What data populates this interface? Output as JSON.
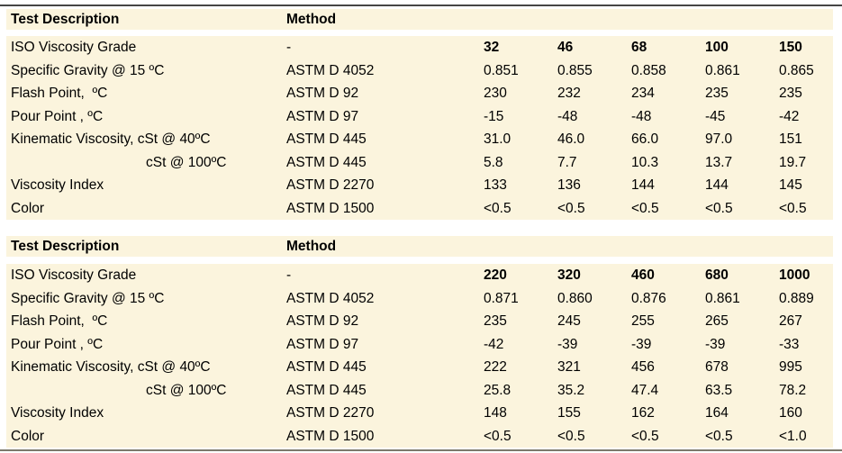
{
  "page": {
    "background_color": "#ffffff",
    "band_color": "#fbf4dd",
    "text_color": "#000000",
    "top_rule_color": "#454545",
    "bottom_rule_color": "#7d796c"
  },
  "tables": [
    {
      "headers": {
        "test_description": "Test Description",
        "method": "Method"
      },
      "rows": [
        {
          "label": "ISO Viscosity Grade",
          "method": "-",
          "values": [
            "32",
            "46",
            "68",
            "100",
            "150"
          ],
          "bold_values": true,
          "indent": false
        },
        {
          "label": "Specific Gravity @ 15 ºC",
          "method": "ASTM D 4052",
          "values": [
            "0.851",
            "0.855",
            "0.858",
            "0.861",
            "0.865"
          ],
          "bold_values": false,
          "indent": false
        },
        {
          "label": "Flash Point,  ºC",
          "method": "ASTM D 92",
          "values": [
            "230",
            "232",
            "234",
            "235",
            "235"
          ],
          "bold_values": false,
          "indent": false
        },
        {
          "label": "Pour Point , ºC",
          "method": "ASTM D 97",
          "values": [
            "-15",
            "-48",
            "-48",
            "-45",
            "-42"
          ],
          "bold_values": false,
          "indent": false
        },
        {
          "label": "Kinematic Viscosity, cSt @ 40ºC",
          "method": "ASTM D 445",
          "values": [
            "31.0",
            "46.0",
            "66.0",
            "97.0",
            "151"
          ],
          "bold_values": false,
          "indent": false
        },
        {
          "label": "cSt @ 100ºC",
          "method": "ASTM D 445",
          "values": [
            "5.8",
            "7.7",
            "10.3",
            "13.7",
            "19.7"
          ],
          "bold_values": false,
          "indent": true
        },
        {
          "label": "Viscosity Index",
          "method": "ASTM D 2270",
          "values": [
            "133",
            "136",
            "144",
            "144",
            "145"
          ],
          "bold_values": false,
          "indent": false
        },
        {
          "label": "Color",
          "method": "ASTM D 1500",
          "values": [
            "<0.5",
            "<0.5",
            "<0.5",
            "<0.5",
            "<0.5"
          ],
          "bold_values": false,
          "indent": false
        }
      ]
    },
    {
      "headers": {
        "test_description": "Test Description",
        "method": "Method"
      },
      "rows": [
        {
          "label": "ISO Viscosity Grade",
          "method": "-",
          "values": [
            "220",
            "320",
            "460",
            "680",
            "1000"
          ],
          "bold_values": true,
          "indent": false
        },
        {
          "label": "Specific Gravity @ 15 ºC",
          "method": "ASTM D 4052",
          "values": [
            "0.871",
            "0.860",
            "0.876",
            "0.861",
            "0.889"
          ],
          "bold_values": false,
          "indent": false
        },
        {
          "label": "Flash Point,  ºC",
          "method": "ASTM D 92",
          "values": [
            "235",
            "245",
            "255",
            "265",
            "267"
          ],
          "bold_values": false,
          "indent": false
        },
        {
          "label": "Pour Point , ºC",
          "method": "ASTM D 97",
          "values": [
            "-42",
            "-39",
            "-39",
            "-39",
            "-33"
          ],
          "bold_values": false,
          "indent": false
        },
        {
          "label": "Kinematic Viscosity, cSt @ 40ºC",
          "method": "ASTM D 445",
          "values": [
            "222",
            "321",
            "456",
            "678",
            "995"
          ],
          "bold_values": false,
          "indent": false
        },
        {
          "label": "cSt @ 100ºC",
          "method": "ASTM D 445",
          "values": [
            "25.8",
            "35.2",
            "47.4",
            "63.5",
            "78.2"
          ],
          "bold_values": false,
          "indent": true
        },
        {
          "label": "Viscosity Index",
          "method": "ASTM D 2270",
          "values": [
            "148",
            "155",
            "162",
            "164",
            "160"
          ],
          "bold_values": false,
          "indent": false
        },
        {
          "label": "Color",
          "method": "ASTM D 1500",
          "values": [
            "<0.5",
            "<0.5",
            "<0.5",
            "<0.5",
            "<1.0"
          ],
          "bold_values": false,
          "indent": false
        }
      ]
    }
  ]
}
